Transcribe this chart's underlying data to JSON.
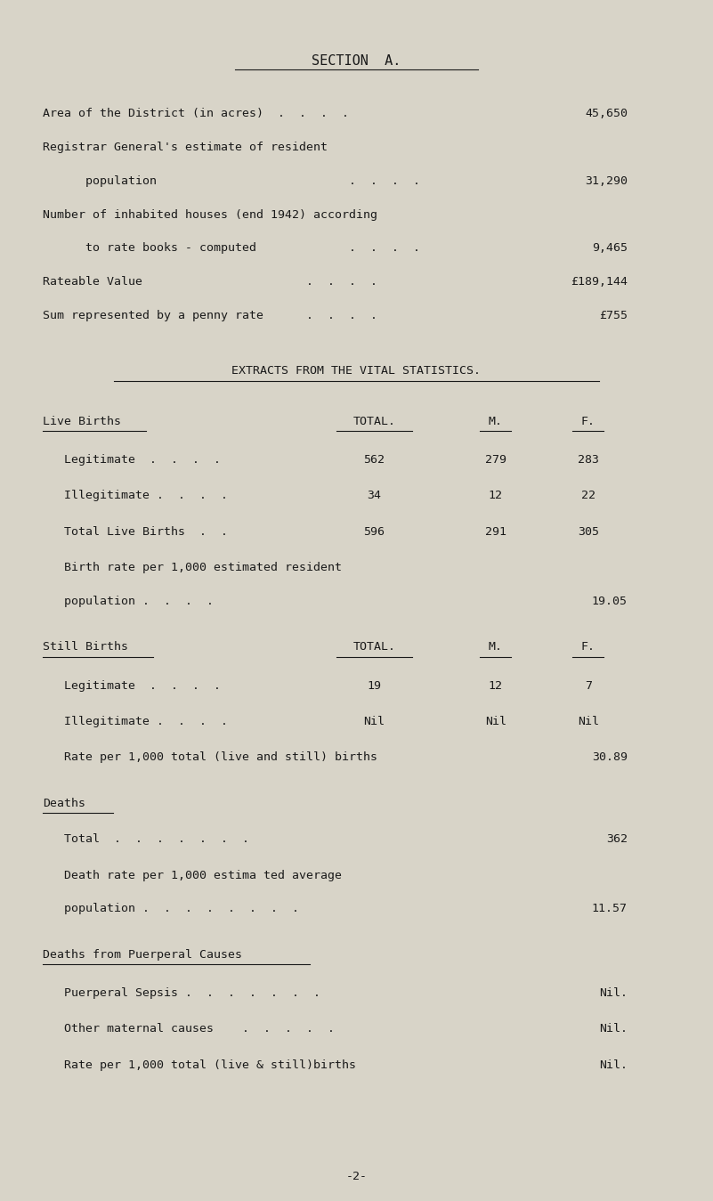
{
  "bg_color": "#d8d4c8",
  "text_color": "#1a1a1a",
  "title": "SECTION  A.",
  "section_lines": [
    {
      "text": "Area of the District (in acres)  .  .  .  .",
      "value": "45,650",
      "indent": 0
    },
    {
      "text": "Registrar General's estimate of resident",
      "value": "",
      "indent": 0
    },
    {
      "text": "population                           .  .  .  .",
      "value": "31,290",
      "indent": 2
    },
    {
      "text": "Number of inhabited houses (end 1942) according",
      "value": "",
      "indent": 0
    },
    {
      "text": "to rate books - computed             .  .  .  .",
      "value": "9,465",
      "indent": 2
    },
    {
      "text": "Rateable Value                       .  .  .  .",
      "value": "£189,144",
      "indent": 0
    },
    {
      "text": "Sum represented by a penny rate      .  .  .  .",
      "value": "£755",
      "indent": 0
    }
  ],
  "subtitle": "EXTRACTS FROM THE VITAL STATISTICS.",
  "live_births_header": "Live Births",
  "col_headers": [
    "TOTAL.",
    "M.",
    "F."
  ],
  "live_births_rows": [
    {
      "label": "   Legitimate  .  .  .  .",
      "values": [
        "562",
        "279",
        "283"
      ]
    },
    {
      "label": "   Illegitimate .  .  .  .",
      "values": [
        "34",
        "12",
        "22"
      ]
    },
    {
      "label": "   Total Live Births  .  .",
      "values": [
        "596",
        "291",
        "305"
      ]
    }
  ],
  "birth_rate_line1": "   Birth rate per 1,000 estimated resident",
  "birth_rate_line2": "   population .  .  .  .",
  "birth_rate_value": "19.05",
  "still_births_header": "Still Births",
  "still_col_headers": [
    "TOTAL.",
    "M.",
    "F."
  ],
  "still_births_rows": [
    {
      "label": "   Legitimate  .  .  .  .",
      "values": [
        "19",
        "12",
        "7"
      ]
    },
    {
      "label": "   Illegitimate .  .  .  .",
      "values": [
        "Nil",
        "Nil",
        "Nil"
      ]
    }
  ],
  "still_rate_line": "   Rate per 1,000 total (live and still) births",
  "still_rate_value": "30.89",
  "deaths_header": "Deaths",
  "deaths_total_line": "   Total  .  .  .  .  .  .  .",
  "deaths_total_value": "362",
  "death_rate_line1": "   Death rate per 1,000 estima ted average",
  "death_rate_line2": "   population .  .  .  .  .  .  .  .",
  "death_rate_value": "11.57",
  "puerperal_header": "Deaths from Puerperal Causes",
  "puerperal_rows": [
    {
      "label": "   Puerperal Sepsis .  .  .  .  .  .  .",
      "value": "Nil."
    },
    {
      "label": "   Other maternal causes    .  .  .  .  .",
      "value": "Nil."
    },
    {
      "label": "   Rate per 1,000 total (live & still)births",
      "value": "Nil."
    }
  ],
  "page_number": "-2-",
  "font_size": 9.5,
  "title_font_size": 11
}
